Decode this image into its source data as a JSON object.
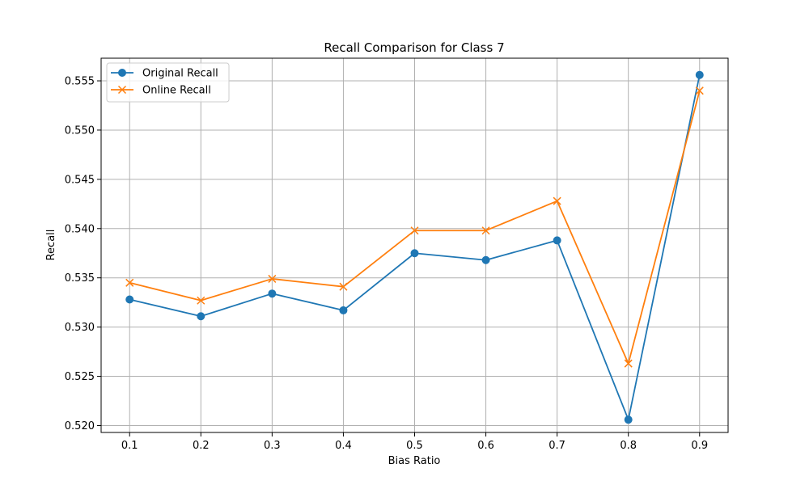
{
  "chart_data": {
    "type": "line",
    "title": "Recall Comparison for Class 7",
    "xlabel": "Bias Ratio",
    "ylabel": "Recall",
    "x": [
      0.1,
      0.2,
      0.3,
      0.4,
      0.5,
      0.6,
      0.7,
      0.8,
      0.9
    ],
    "x_tick_labels": [
      "0.1",
      "0.2",
      "0.3",
      "0.4",
      "0.5",
      "0.6",
      "0.7",
      "0.8",
      "0.9"
    ],
    "y_ticks": [
      0.52,
      0.525,
      0.53,
      0.535,
      0.54,
      0.545,
      0.55,
      0.555
    ],
    "y_tick_labels": [
      "0.520",
      "0.525",
      "0.530",
      "0.535",
      "0.540",
      "0.545",
      "0.550",
      "0.555"
    ],
    "xlim": [
      0.06,
      0.94
    ],
    "ylim": [
      0.5193,
      0.5573
    ],
    "grid": true,
    "legend_position": "top-left",
    "series": [
      {
        "name": "Original Recall",
        "color": "#1f77b4",
        "marker": "circle",
        "values": [
          0.5328,
          0.5311,
          0.5334,
          0.5317,
          0.5375,
          0.5368,
          0.5388,
          0.5206,
          0.5556
        ]
      },
      {
        "name": "Online Recall",
        "color": "#ff7f0e",
        "marker": "x",
        "values": [
          0.5345,
          0.5327,
          0.5349,
          0.5341,
          0.5398,
          0.5398,
          0.5428,
          0.5263,
          0.554
        ]
      }
    ]
  }
}
